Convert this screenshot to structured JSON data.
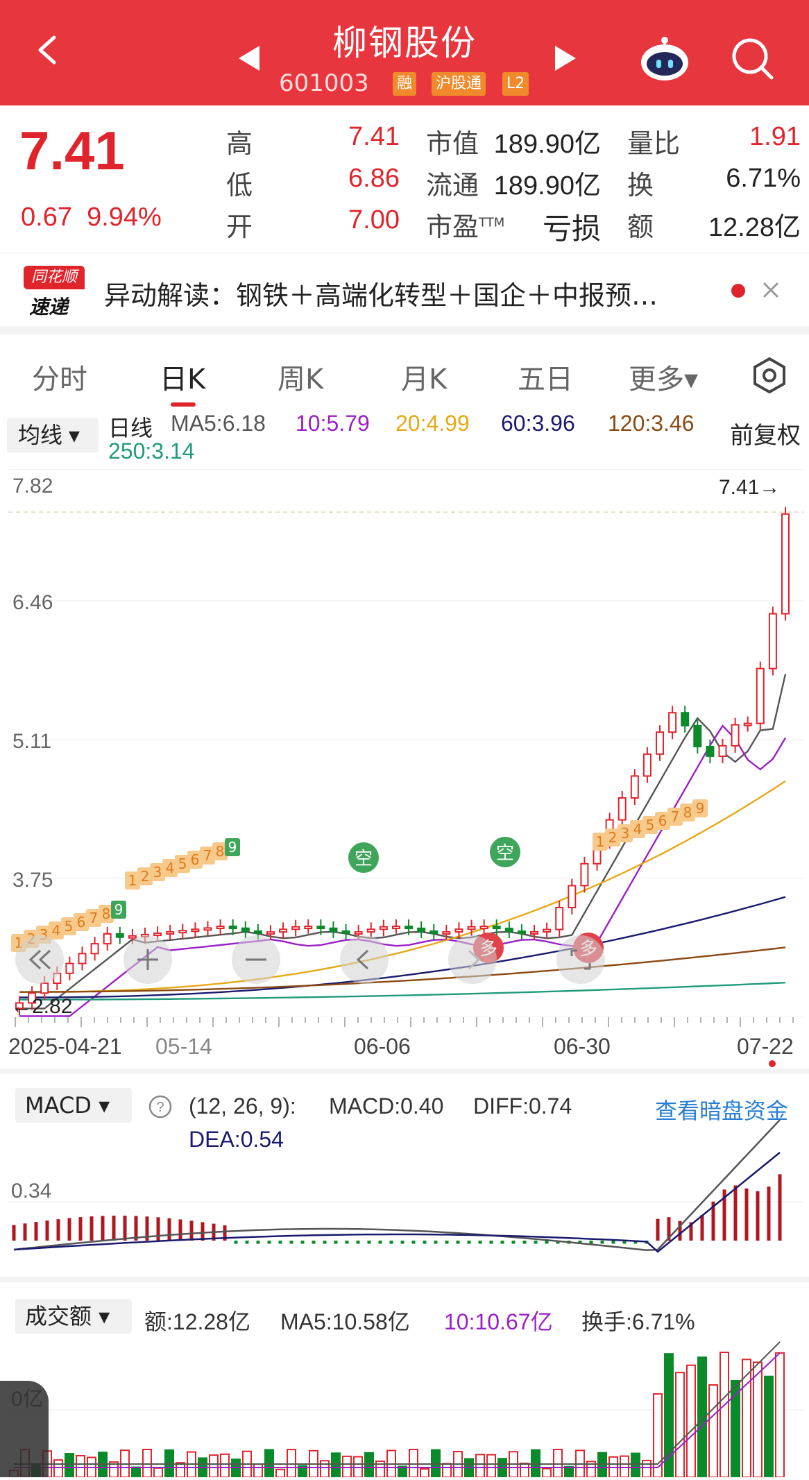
{
  "header": {
    "title": "柳钢股份",
    "code": "601003",
    "tags": [
      "融",
      "沪股通",
      "L2"
    ]
  },
  "quote": {
    "price": "7.41",
    "change": "0.67",
    "change_pct": "9.94%",
    "fields": [
      {
        "label": "高",
        "value": "7.41"
      },
      {
        "label": "低",
        "value": "6.86"
      },
      {
        "label": "开",
        "value": "7.00"
      }
    ],
    "market": [
      {
        "label": "市值",
        "value": "189.90亿"
      },
      {
        "label": "流通",
        "value": "189.90亿"
      },
      {
        "label": "市盈",
        "sup": "TTM",
        "value": "亏损"
      }
    ],
    "right": [
      {
        "label": "量比",
        "value": "1.91"
      },
      {
        "label": "换",
        "value": "6.71%"
      },
      {
        "label": "额",
        "value": "12.28亿"
      }
    ]
  },
  "news": {
    "logo_top": "同花顺",
    "logo_bottom": "速递",
    "text": "异动解读：钢铁＋高端化转型＋国企＋中报预…"
  },
  "tabs": [
    "分时",
    "日K",
    "周K",
    "月K",
    "五日",
    "更多▾"
  ],
  "ma": {
    "select": "均线 ▾",
    "period": "日线",
    "ma5": "MA5:6.18",
    "ma10": "10:5.79",
    "ma20": "20:4.99",
    "ma60": "60:3.96",
    "ma120": "120:3.46",
    "ma250": "250:3.14",
    "adjust": "前复权",
    "colors": {
      "ma5": "#555555",
      "ma10": "#9b1fc8",
      "ma20": "#e6a817",
      "ma60": "#1a1a6e",
      "ma120": "#8a4a14",
      "ma250": "#1f9a7a"
    }
  },
  "kchart": {
    "y_labels": [
      "7.82",
      "6.46",
      "5.11",
      "3.75"
    ],
    "high_label": "7.41→",
    "low_label": "←2.82",
    "x_labels": [
      "2025-04-21",
      "05-14",
      "06-06",
      "06-30",
      "07-22"
    ],
    "signals": [
      "空",
      "空",
      "多",
      "多"
    ],
    "nine_turn_early": [
      "1",
      "2",
      "3",
      "4",
      "5",
      "6",
      "7",
      "8",
      "9"
    ],
    "nine_turn_mid": [
      "1",
      "2",
      "3",
      "4",
      "5",
      "6",
      "7",
      "8",
      "9"
    ],
    "nine_turn_late": [
      "1",
      "2",
      "3",
      "4",
      "5",
      "6",
      "7",
      "8",
      "9"
    ]
  },
  "macd": {
    "select": "MACD ▾",
    "params": "(12, 26, 9):",
    "macd": "MACD:0.40",
    "diff": "DIFF:0.74",
    "dea": "DEA:0.54",
    "link": "查看暗盘资金",
    "y_label": "0.34"
  },
  "volume": {
    "select": "成交额 ▾",
    "amount": "额:12.28亿",
    "ma5": "MA5:10.58亿",
    "ma10": "10:10.67亿",
    "turnover": "换手:6.71%",
    "y_label": "0亿"
  },
  "chart_data": {
    "type": "candlestick",
    "title": "柳钢股份 601003 日K",
    "ylim": [
      2.82,
      7.82
    ],
    "x_ticks": [
      "2025-04-21",
      "05-14",
      "06-06",
      "06-30",
      "07-22"
    ],
    "last_close": 7.41,
    "period_low": 2.82,
    "moving_averages": {
      "MA5": 6.18,
      "MA10": 5.79,
      "MA20": 4.99,
      "MA60": 3.96,
      "MA120": 3.46,
      "MA250": 3.14
    }
  }
}
